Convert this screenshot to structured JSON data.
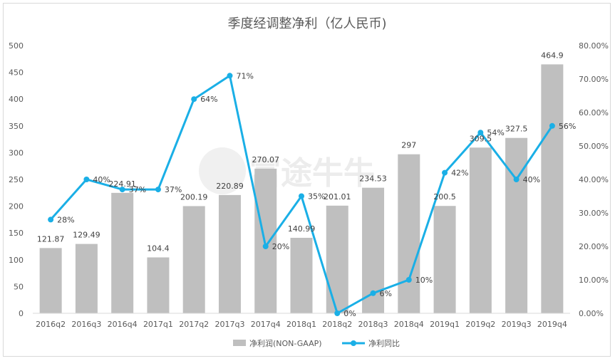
{
  "chart_data": {
    "type": "bar",
    "title": "季度经调整净利（亿人民币)",
    "watermark": "富途牛牛",
    "categories": [
      "2016q2",
      "2016q3",
      "2016q4",
      "2017q1",
      "2017q2",
      "2017q3",
      "2017q4",
      "2018q1",
      "2018q2",
      "2018q3",
      "2018q4",
      "2019q1",
      "2019q2",
      "2019q3",
      "2019q4"
    ],
    "series": [
      {
        "name": "净利润(NON-GAAP)",
        "type": "bar",
        "axis": "left",
        "color": "#bfbfbf",
        "values": [
          121.87,
          129.49,
          224.91,
          104.4,
          200.19,
          220.89,
          270.07,
          140.99,
          201.01,
          234.53,
          297,
          200.5,
          309.5,
          327.5,
          464.9
        ],
        "labels": [
          "121.87",
          "129.49",
          "224.91",
          "104.4",
          "200.19",
          "220.89",
          "270.07",
          "140.99",
          "201.01",
          "234.53",
          "297",
          "200.5",
          "309.5",
          "327.5",
          "464.9"
        ]
      },
      {
        "name": "净利同比",
        "type": "line",
        "axis": "right",
        "color": "#1aafe6",
        "values": [
          0.28,
          0.4,
          0.37,
          0.37,
          0.64,
          0.71,
          0.2,
          0.35,
          0.0,
          0.06,
          0.1,
          0.42,
          0.54,
          0.4,
          0.56
        ],
        "labels": [
          "28%",
          "40%",
          "37%",
          "37%",
          "64%",
          "71%",
          "20%",
          "35%",
          "0%",
          "6%",
          "10%",
          "42%",
          "54%",
          "40%",
          "56%"
        ]
      }
    ],
    "y_left": {
      "ylim": [
        0,
        500
      ],
      "ticks": [
        "0",
        "50",
        "100",
        "150",
        "200",
        "250",
        "300",
        "350",
        "400",
        "450",
        "500"
      ]
    },
    "y_right": {
      "ylim": [
        0,
        0.8
      ],
      "ticks": [
        "0.00%",
        "10.00%",
        "20.00%",
        "30.00%",
        "40.00%",
        "50.00%",
        "60.00%",
        "70.00%",
        "80.00%"
      ]
    },
    "grid": false,
    "legend_position": "bottom"
  }
}
